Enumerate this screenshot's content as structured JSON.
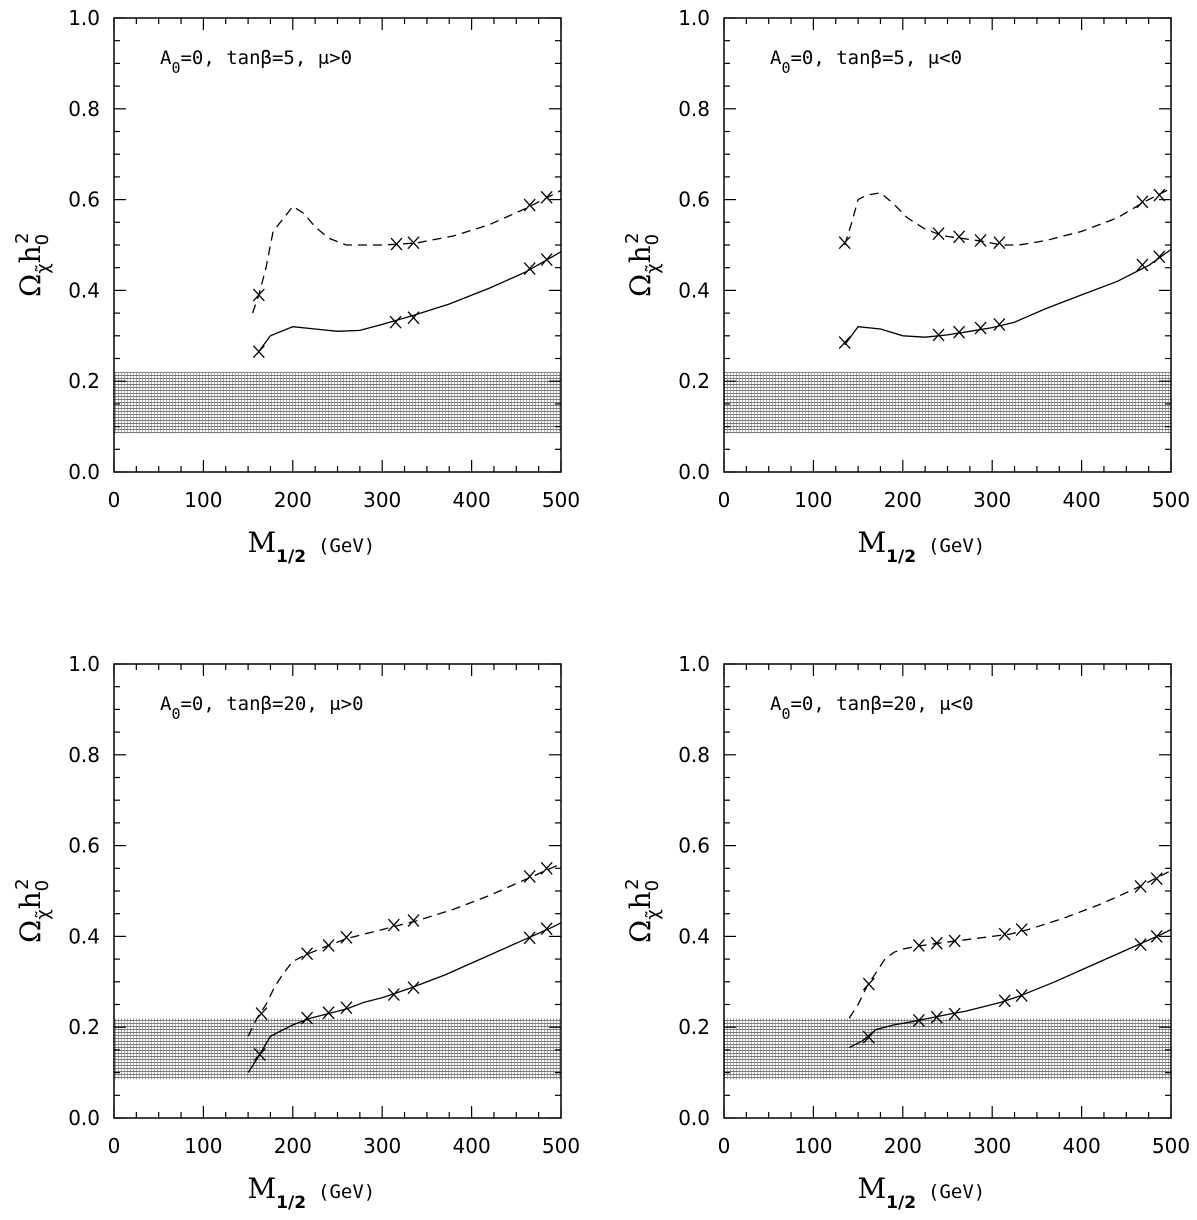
{
  "chart_data": [
    {
      "type": "line",
      "annotation": "A₀=0, tanβ=5, μ>0",
      "xlabel": "M1/2 (GeV)",
      "ylabel": "Ωχh0²",
      "xlim": [
        0,
        500
      ],
      "ylim": [
        0.0,
        1.0
      ],
      "xticks": [
        "0",
        "100",
        "200",
        "300",
        "400",
        "500"
      ],
      "yticks": [
        "0.0",
        "0.2",
        "0.4",
        "0.6",
        "0.8",
        "1.0"
      ],
      "shaded_band": [
        0.085,
        0.22
      ],
      "series": [
        {
          "style": "dashed",
          "x": [
            155,
            162,
            170,
            178,
            190,
            200,
            212,
            225,
            240,
            260,
            280,
            300,
            320,
            340,
            380,
            420,
            460,
            490,
            500
          ],
          "y": [
            0.35,
            0.39,
            0.45,
            0.53,
            0.56,
            0.585,
            0.57,
            0.54,
            0.515,
            0.5,
            0.5,
            0.5,
            0.502,
            0.505,
            0.52,
            0.545,
            0.58,
            0.61,
            0.62
          ],
          "markers": [
            [
              162,
              0.39
            ],
            [
              316,
              0.502
            ],
            [
              335,
              0.505
            ],
            [
              465,
              0.588
            ],
            [
              484,
              0.605
            ]
          ]
        },
        {
          "style": "solid",
          "x": [
            160,
            175,
            200,
            225,
            250,
            275,
            300,
            335,
            375,
            420,
            460,
            500
          ],
          "y": [
            0.26,
            0.3,
            0.32,
            0.315,
            0.31,
            0.312,
            0.325,
            0.345,
            0.37,
            0.405,
            0.44,
            0.485
          ],
          "markers": [
            [
              162,
              0.265
            ],
            [
              315,
              0.33
            ],
            [
              335,
              0.34
            ],
            [
              465,
              0.448
            ],
            [
              484,
              0.468
            ]
          ]
        }
      ]
    },
    {
      "type": "line",
      "annotation": "A₀=0, tanβ=5, μ<0",
      "xlabel": "M1/2 (GeV)",
      "ylabel": "Ωχh0²",
      "xlim": [
        0,
        500
      ],
      "ylim": [
        0.0,
        1.0
      ],
      "xticks": [
        "0",
        "100",
        "200",
        "300",
        "400",
        "500"
      ],
      "yticks": [
        "0.0",
        "0.2",
        "0.4",
        "0.6",
        "0.8",
        "1.0"
      ],
      "shaded_band": [
        0.085,
        0.22
      ],
      "series": [
        {
          "style": "dashed",
          "x": [
            135,
            143,
            150,
            160,
            175,
            190,
            205,
            225,
            245,
            265,
            290,
            310,
            330,
            360,
            400,
            440,
            470,
            500
          ],
          "y": [
            0.5,
            0.55,
            0.6,
            0.61,
            0.615,
            0.59,
            0.56,
            0.535,
            0.52,
            0.515,
            0.508,
            0.5,
            0.5,
            0.51,
            0.53,
            0.56,
            0.595,
            0.625
          ],
          "markers": [
            [
              135,
              0.505
            ],
            [
              240,
              0.525
            ],
            [
              263,
              0.518
            ],
            [
              287,
              0.51
            ],
            [
              308,
              0.505
            ],
            [
              468,
              0.595
            ],
            [
              487,
              0.61
            ]
          ]
        },
        {
          "style": "solid",
          "x": [
            135,
            150,
            175,
            200,
            225,
            250,
            275,
            300,
            325,
            360,
            400,
            440,
            475,
            500
          ],
          "y": [
            0.28,
            0.32,
            0.315,
            0.3,
            0.297,
            0.302,
            0.31,
            0.318,
            0.33,
            0.36,
            0.39,
            0.42,
            0.455,
            0.49
          ],
          "markers": [
            [
              135,
              0.285
            ],
            [
              240,
              0.302
            ],
            [
              263,
              0.308
            ],
            [
              287,
              0.317
            ],
            [
              308,
              0.325
            ],
            [
              468,
              0.456
            ],
            [
              487,
              0.474
            ]
          ]
        }
      ]
    },
    {
      "type": "line",
      "annotation": "A₀=0, tanβ=20, μ>0",
      "xlabel": "M1/2 (GeV)",
      "ylabel": "Ωχh0²",
      "xlim": [
        0,
        500
      ],
      "ylim": [
        0.0,
        1.0
      ],
      "xticks": [
        "0",
        "100",
        "200",
        "300",
        "400",
        "500"
      ],
      "yticks": [
        "0.0",
        "0.2",
        "0.4",
        "0.6",
        "0.8",
        "1.0"
      ],
      "shaded_band": [
        0.085,
        0.22
      ],
      "series": [
        {
          "style": "dashed",
          "x": [
            150,
            160,
            170,
            180,
            190,
            200,
            215,
            240,
            260,
            280,
            300,
            320,
            340,
            380,
            420,
            460,
            500
          ],
          "y": [
            0.18,
            0.22,
            0.25,
            0.29,
            0.32,
            0.345,
            0.36,
            0.38,
            0.395,
            0.405,
            0.415,
            0.425,
            0.435,
            0.46,
            0.49,
            0.525,
            0.56
          ],
          "markers": [
            [
              165,
              0.23
            ],
            [
              216,
              0.362
            ],
            [
              240,
              0.38
            ],
            [
              260,
              0.398
            ],
            [
              313,
              0.425
            ],
            [
              335,
              0.435
            ],
            [
              465,
              0.532
            ],
            [
              484,
              0.55
            ]
          ]
        },
        {
          "style": "solid",
          "x": [
            150,
            160,
            175,
            200,
            220,
            240,
            260,
            280,
            300,
            330,
            370,
            410,
            450,
            490,
            500
          ],
          "y": [
            0.1,
            0.13,
            0.18,
            0.205,
            0.22,
            0.23,
            0.24,
            0.255,
            0.265,
            0.285,
            0.315,
            0.35,
            0.385,
            0.42,
            0.43
          ],
          "markers": [
            [
              163,
              0.14
            ],
            [
              216,
              0.22
            ],
            [
              240,
              0.232
            ],
            [
              260,
              0.243
            ],
            [
              313,
              0.272
            ],
            [
              335,
              0.287
            ],
            [
              465,
              0.397
            ],
            [
              484,
              0.417
            ]
          ]
        }
      ]
    },
    {
      "type": "line",
      "annotation": "A₀=0, tanβ=20, μ<0",
      "xlabel": "M1/2 (GeV)",
      "ylabel": "Ωχh0²",
      "xlim": [
        0,
        500
      ],
      "ylim": [
        0.0,
        1.0
      ],
      "xticks": [
        "0",
        "100",
        "200",
        "300",
        "400",
        "500"
      ],
      "yticks": [
        "0.0",
        "0.2",
        "0.4",
        "0.6",
        "0.8",
        "1.0"
      ],
      "shaded_band": [
        0.085,
        0.22
      ],
      "series": [
        {
          "style": "dashed",
          "x": [
            140,
            150,
            160,
            170,
            180,
            190,
            200,
            215,
            240,
            260,
            280,
            300,
            320,
            340,
            380,
            420,
            460,
            500
          ],
          "y": [
            0.22,
            0.25,
            0.29,
            0.32,
            0.35,
            0.365,
            0.372,
            0.378,
            0.385,
            0.39,
            0.395,
            0.4,
            0.405,
            0.415,
            0.44,
            0.47,
            0.505,
            0.545
          ],
          "markers": [
            [
              162,
              0.295
            ],
            [
              218,
              0.38
            ],
            [
              238,
              0.385
            ],
            [
              258,
              0.39
            ],
            [
              314,
              0.405
            ],
            [
              333,
              0.415
            ],
            [
              466,
              0.51
            ],
            [
              484,
              0.527
            ]
          ]
        },
        {
          "style": "solid",
          "x": [
            140,
            155,
            170,
            190,
            210,
            230,
            250,
            270,
            290,
            310,
            330,
            370,
            410,
            450,
            490,
            500
          ],
          "y": [
            0.155,
            0.17,
            0.195,
            0.205,
            0.212,
            0.22,
            0.228,
            0.235,
            0.245,
            0.255,
            0.268,
            0.3,
            0.335,
            0.37,
            0.405,
            0.415
          ],
          "markers": [
            [
              162,
              0.178
            ],
            [
              218,
              0.215
            ],
            [
              238,
              0.222
            ],
            [
              258,
              0.229
            ],
            [
              314,
              0.258
            ],
            [
              333,
              0.27
            ],
            [
              466,
              0.382
            ],
            [
              484,
              0.4
            ]
          ]
        }
      ]
    }
  ]
}
